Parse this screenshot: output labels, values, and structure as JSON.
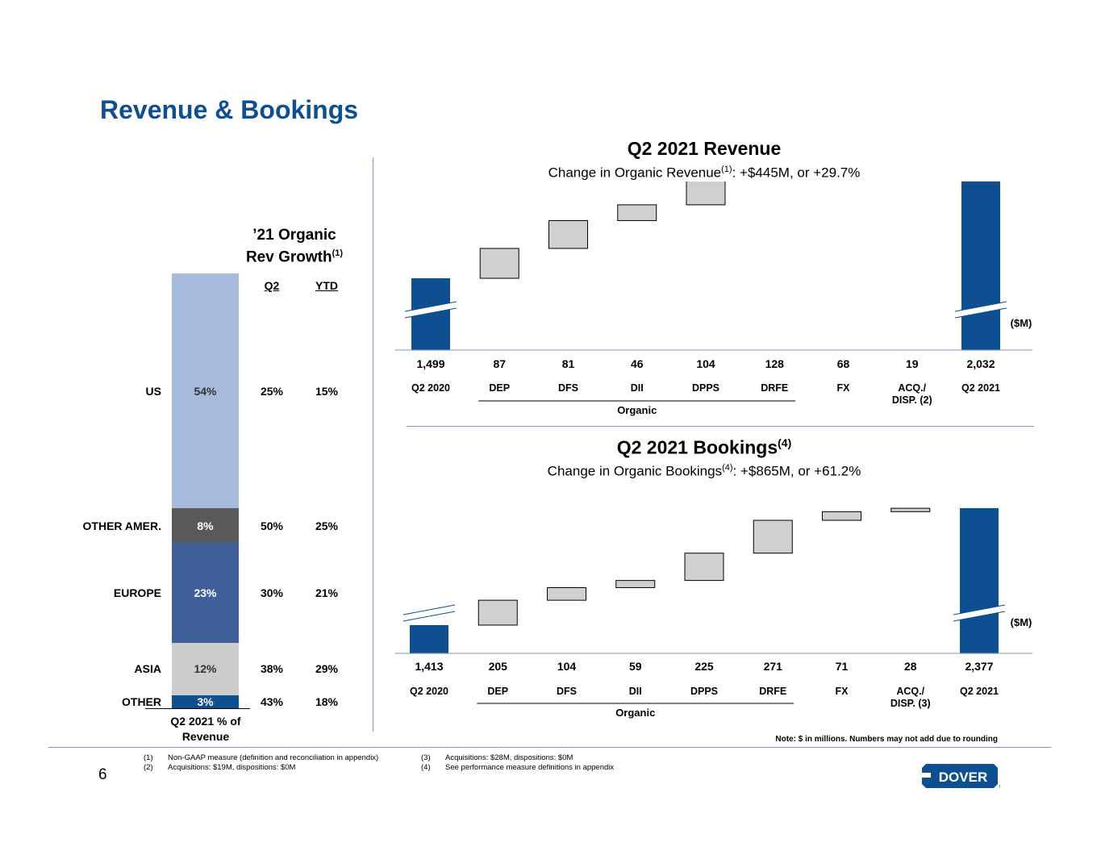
{
  "page": {
    "title": "Revenue & Bookings",
    "page_number": "6",
    "note": "Note: $ in millions. Numbers may not add due to rounding",
    "footnotes": [
      {
        "num": "(1)",
        "text": "Non-GAAP measure (definition and reconciliation in appendix)"
      },
      {
        "num": "(2)",
        "text": "Acquisitions: $19M, dispositions: $0M"
      },
      {
        "num": "(3)",
        "text": "Acquisitions: $28M, dispositions: $0M"
      },
      {
        "num": "(4)",
        "text": "See performance measure definitions in appendix"
      }
    ],
    "logo_text": "DOVER"
  },
  "left_panel": {
    "growth_title_line1": "’21 Organic",
    "growth_title_line2": "Rev Growth",
    "growth_title_sup": "(1)",
    "col_q2": "Q2",
    "col_ytd": "YTD",
    "bar_caption_line1": "Q2 2021 % of",
    "bar_caption_line2": "Revenue",
    "colors": {
      "US": "#a6bbdb",
      "OTHER AMER.": "#595959",
      "EUROPE": "#3f5f99",
      "ASIA": "#cccccc",
      "OTHER": "#0d4f91"
    }
  },
  "chart_data": [
    {
      "type": "bar",
      "subtype": "stacked",
      "categories": [
        "US",
        "OTHER AMER.",
        "EUROPE",
        "ASIA",
        "OTHER"
      ],
      "values": [
        54,
        8,
        23,
        12,
        3
      ],
      "value_labels": [
        "54%",
        "8%",
        "23%",
        "12%",
        "3%"
      ],
      "growth_q2": [
        "25%",
        "50%",
        "30%",
        "38%",
        "43%"
      ],
      "growth_ytd": [
        "15%",
        "25%",
        "21%",
        "29%",
        "18%"
      ]
    },
    {
      "type": "bar",
      "subtype": "waterfall",
      "title": "Q2 2021 Revenue",
      "subtitle_pre": "Change in Organic Revenue",
      "subtitle_sup": "(1)",
      "subtitle_post": ": +$445M, or +29.7%",
      "unit": "($M)",
      "categories": [
        "Q2 2020",
        "DEP",
        "DFS",
        "DII",
        "DPPS",
        "DRFE",
        "FX",
        "ACQ./\nDISP. (2)",
        "Q2 2021"
      ],
      "category_lines": [
        [
          "Q2 2020"
        ],
        [
          "DEP"
        ],
        [
          "DFS"
        ],
        [
          "DII"
        ],
        [
          "DPPS"
        ],
        [
          "DRFE"
        ],
        [
          "FX"
        ],
        [
          "ACQ./",
          "DISP. (2)"
        ],
        [
          "Q2 2021"
        ]
      ],
      "values": [
        1499,
        87,
        81,
        46,
        104,
        128,
        68,
        19,
        2032
      ],
      "value_labels": [
        "1,499",
        "87",
        "81",
        "46",
        "104",
        "128",
        "68",
        "19",
        "2,032"
      ],
      "kinds": [
        "total",
        "delta",
        "delta",
        "delta",
        "delta",
        "delta",
        "delta",
        "delta",
        "total"
      ],
      "group_label": "Organic",
      "colors": {
        "total": "#0d4f91",
        "delta": "#d0d0d0"
      }
    },
    {
      "type": "bar",
      "subtype": "waterfall",
      "title": "Q2 2021 Bookings",
      "title_sup": "(4)",
      "subtitle_pre": "Change in Organic Bookings",
      "subtitle_sup": "(4)",
      "subtitle_post": ": +$865M, or +61.2%",
      "unit": "($M)",
      "categories": [
        "Q2 2020",
        "DEP",
        "DFS",
        "DII",
        "DPPS",
        "DRFE",
        "FX",
        "ACQ./\nDISP. (3)",
        "Q2 2021"
      ],
      "category_lines": [
        [
          "Q2 2020"
        ],
        [
          "DEP"
        ],
        [
          "DFS"
        ],
        [
          "DII"
        ],
        [
          "DPPS"
        ],
        [
          "DRFE"
        ],
        [
          "FX"
        ],
        [
          "ACQ./",
          "DISP. (3)"
        ],
        [
          "Q2 2021"
        ]
      ],
      "values": [
        1413,
        205,
        104,
        59,
        225,
        271,
        71,
        28,
        2377
      ],
      "value_labels": [
        "1,413",
        "205",
        "104",
        "59",
        "225",
        "271",
        "71",
        "28",
        "2,377"
      ],
      "kinds": [
        "total",
        "delta",
        "delta",
        "delta",
        "delta",
        "delta",
        "delta",
        "delta",
        "total"
      ],
      "group_label": "Organic",
      "colors": {
        "total": "#0d4f91",
        "delta": "#d0d0d0"
      }
    }
  ]
}
